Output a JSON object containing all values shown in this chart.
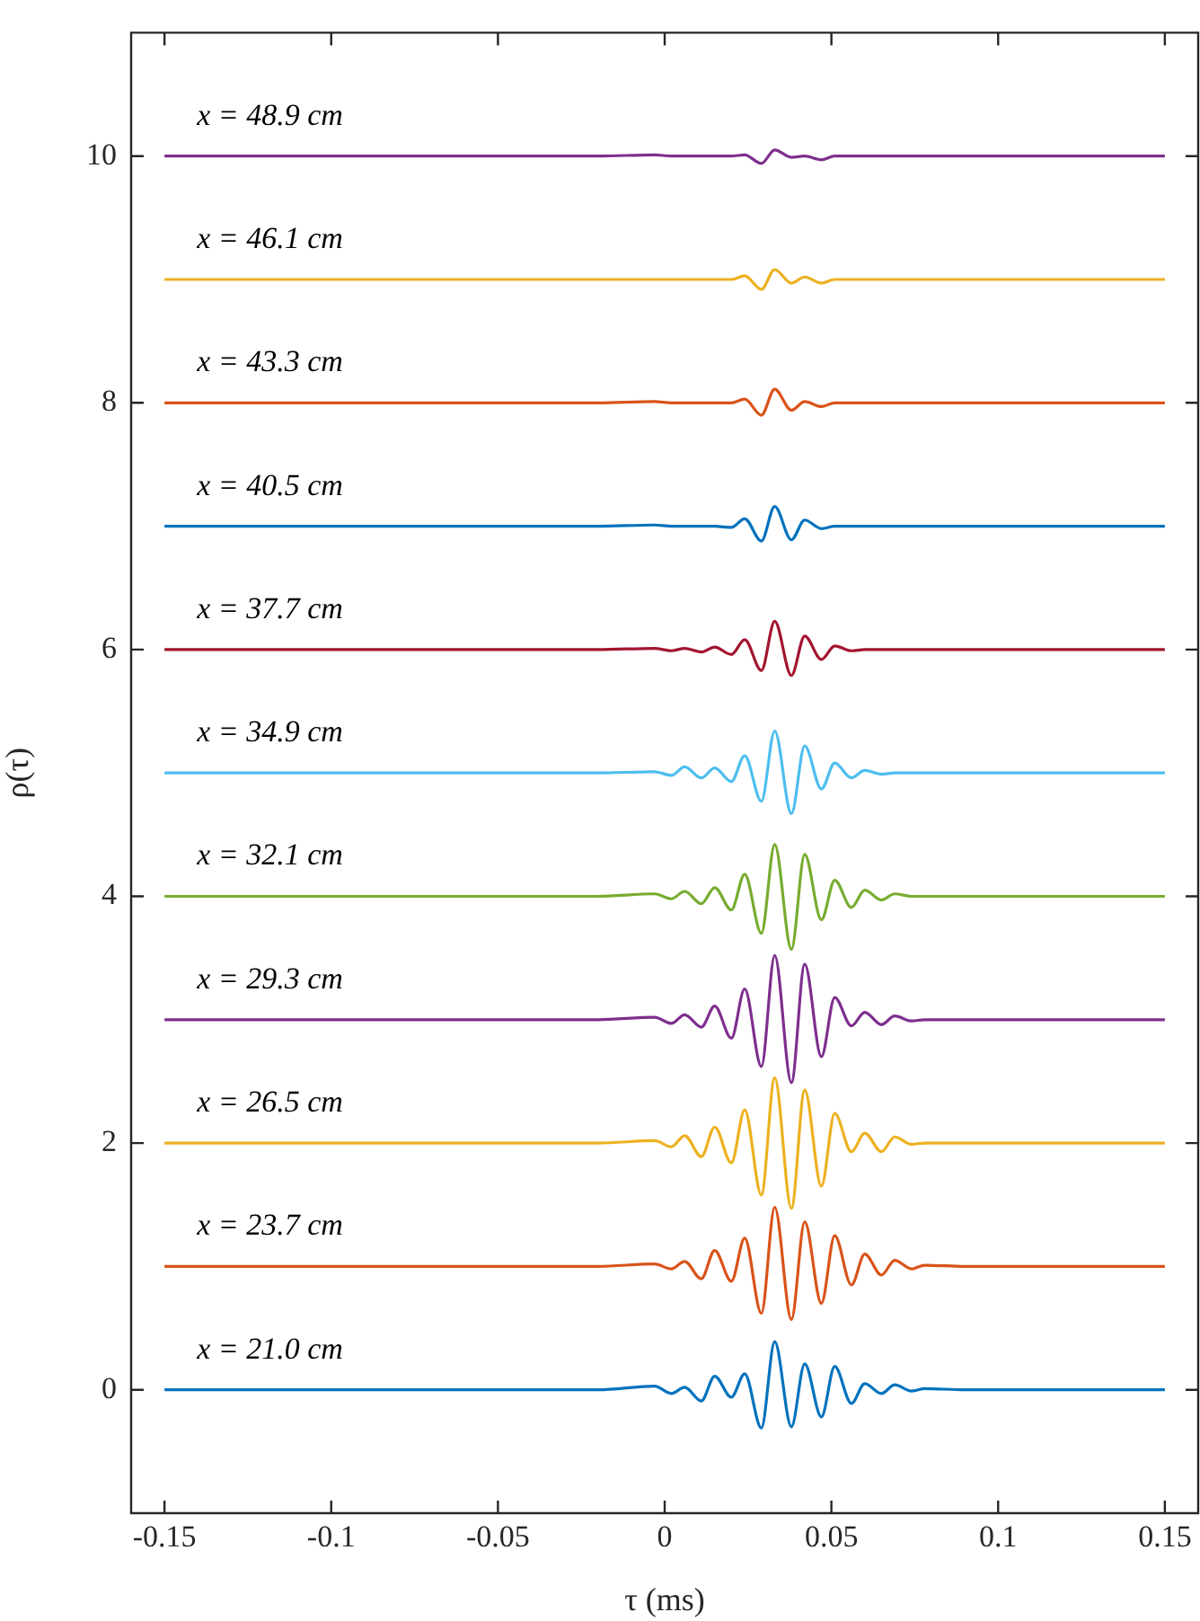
{
  "chart_data": {
    "type": "line",
    "xlabel": "τ (ms)",
    "ylabel": "ρ(τ)",
    "x": [
      -0.15,
      -0.1,
      -0.05,
      -0.02,
      -0.003,
      0.002,
      0.006,
      0.011,
      0.015,
      0.02,
      0.024,
      0.029,
      0.033,
      0.038,
      0.042,
      0.047,
      0.051,
      0.056,
      0.06,
      0.065,
      0.069,
      0.074,
      0.078,
      0.09,
      0.12,
      0.15
    ],
    "series": [
      {
        "name": "x = 21.0 cm",
        "color": "#0072bd",
        "values": [
          0,
          0,
          0,
          0,
          0.03,
          -0.03,
          0.02,
          -0.09,
          0.11,
          -0.06,
          0.13,
          -0.31,
          0.39,
          -0.3,
          0.21,
          -0.22,
          0.19,
          -0.11,
          0.05,
          -0.03,
          0.04,
          -0.01,
          0.01,
          0,
          0,
          0
        ]
      },
      {
        "name": "x = 23.7 cm",
        "color": "#d95319",
        "values": [
          1,
          1,
          1,
          1,
          1.02,
          0.98,
          1.04,
          0.9,
          1.13,
          0.88,
          1.23,
          0.62,
          1.48,
          0.57,
          1.36,
          0.7,
          1.25,
          0.85,
          1.1,
          0.93,
          1.05,
          0.98,
          1.01,
          1,
          1,
          1
        ]
      },
      {
        "name": "x = 26.5 cm",
        "color": "#edb120",
        "values": [
          2,
          2,
          2,
          2,
          2.02,
          1.97,
          2.06,
          1.89,
          2.13,
          1.84,
          2.27,
          1.58,
          2.53,
          1.47,
          2.43,
          1.65,
          2.24,
          1.93,
          2.08,
          1.93,
          2.05,
          1.99,
          2,
          2,
          2,
          2
        ]
      },
      {
        "name": "x = 29.3 cm",
        "color": "#7e2f8e",
        "values": [
          3,
          3,
          3,
          3,
          3.02,
          2.97,
          3.04,
          2.94,
          3.11,
          2.85,
          3.25,
          2.62,
          3.52,
          2.49,
          3.45,
          2.7,
          3.18,
          2.95,
          3.06,
          2.96,
          3.03,
          2.99,
          3,
          3,
          3,
          3
        ]
      },
      {
        "name": "x = 32.1 cm",
        "color": "#77ac30",
        "values": [
          4,
          4,
          4,
          4,
          4.02,
          3.98,
          4.04,
          3.94,
          4.07,
          3.89,
          4.18,
          3.7,
          4.42,
          3.57,
          4.34,
          3.81,
          4.13,
          3.91,
          4.05,
          3.97,
          4.02,
          4,
          4,
          4,
          4,
          4
        ]
      },
      {
        "name": "x = 34.9 cm",
        "color": "#4dbeee",
        "values": [
          5,
          5,
          5,
          5,
          5.01,
          4.98,
          5.05,
          4.96,
          5.04,
          4.93,
          5.14,
          4.77,
          5.34,
          4.67,
          5.22,
          4.87,
          5.08,
          4.96,
          5.02,
          4.99,
          5,
          5,
          5,
          5,
          5,
          5
        ]
      },
      {
        "name": "x = 37.7 cm",
        "color": "#a2142f",
        "values": [
          6,
          6,
          6,
          6,
          6.01,
          5.99,
          6.01,
          5.98,
          6.02,
          5.96,
          6.08,
          5.83,
          6.23,
          5.79,
          6.11,
          5.92,
          6.03,
          5.99,
          6,
          6,
          6,
          6,
          6,
          6,
          6,
          6
        ]
      },
      {
        "name": "x = 40.5 cm",
        "color": "#0072bd",
        "values": [
          7,
          7,
          7,
          7,
          7.01,
          7,
          7,
          7,
          7,
          6.99,
          7.06,
          6.88,
          7.16,
          6.89,
          7.05,
          6.98,
          7,
          7,
          7,
          7,
          7,
          7,
          7,
          7,
          7,
          7
        ]
      },
      {
        "name": "x = 43.3 cm",
        "color": "#d95319",
        "values": [
          8,
          8,
          8,
          8,
          8.01,
          8,
          8,
          8,
          8,
          8,
          8.03,
          7.9,
          8.11,
          7.94,
          8.01,
          7.97,
          8,
          8,
          8,
          8,
          8,
          8,
          8,
          8,
          8,
          8
        ]
      },
      {
        "name": "x = 46.1 cm",
        "color": "#edb120",
        "values": [
          9,
          9,
          9,
          9,
          9,
          9,
          9,
          9,
          9,
          9,
          9.03,
          8.92,
          9.08,
          8.97,
          9.02,
          8.97,
          9,
          9,
          9,
          9,
          9,
          9,
          9,
          9,
          9,
          9
        ]
      },
      {
        "name": "x = 48.9 cm",
        "color": "#7e2f8e",
        "values": [
          10,
          10,
          10,
          10,
          10.01,
          10,
          10,
          10,
          10,
          10,
          10.01,
          9.94,
          10.05,
          9.99,
          10,
          9.97,
          10,
          10,
          10,
          10,
          10,
          10,
          10,
          10,
          10,
          10
        ]
      }
    ],
    "xlim": [
      -0.16,
      0.16
    ],
    "xticks": [
      -0.15,
      -0.1,
      -0.05,
      0,
      0.05,
      0.1,
      0.15
    ],
    "ylim": [
      -1,
      11
    ],
    "yticks": [
      0,
      2,
      4,
      6,
      8,
      10
    ],
    "grid": false,
    "legend": false,
    "marker": "none",
    "line_style": "solid"
  }
}
